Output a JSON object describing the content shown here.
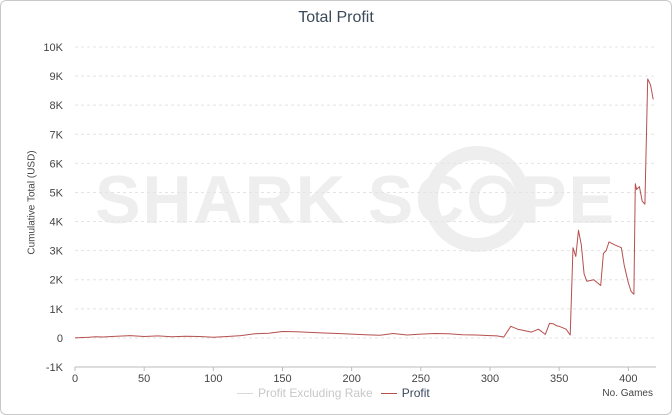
{
  "chart_data": {
    "type": "line",
    "title": "Total Profit",
    "xlabel": "No. Games",
    "ylabel": "Cumulative Total (USD)",
    "xlim": [
      0,
      420
    ],
    "ylim": [
      -1000,
      10000
    ],
    "x_ticks": [
      0,
      50,
      100,
      150,
      200,
      250,
      300,
      350,
      400
    ],
    "y_ticks": [
      -1000,
      0,
      1000,
      2000,
      3000,
      4000,
      5000,
      6000,
      7000,
      8000,
      9000,
      10000
    ],
    "y_tick_labels": [
      "-1K",
      "0",
      "1K",
      "2K",
      "3K",
      "4K",
      "5K",
      "6K",
      "7K",
      "8K",
      "9K",
      "10K"
    ],
    "x_tick_labels": [
      "0",
      "50",
      "100",
      "150",
      "200",
      "250",
      "300",
      "350",
      "400"
    ],
    "grid": true,
    "watermark": "SHARK SCOPE",
    "legend": {
      "placement": "bottom",
      "entries": [
        "Profit Excluding Rake",
        "Profit"
      ]
    },
    "series": [
      {
        "name": "Profit Excluding Rake",
        "color": "#d9d9d9",
        "visible": false,
        "x": [],
        "y": []
      },
      {
        "name": "Profit",
        "color": "#b5504e",
        "visible": true,
        "x": [
          0,
          10,
          15,
          20,
          30,
          40,
          50,
          60,
          70,
          80,
          90,
          100,
          110,
          120,
          130,
          140,
          150,
          160,
          170,
          180,
          190,
          200,
          210,
          220,
          230,
          240,
          250,
          260,
          270,
          280,
          290,
          300,
          305,
          310,
          315,
          320,
          325,
          330,
          335,
          340,
          343,
          346,
          348,
          350,
          355,
          358,
          360,
          362,
          364,
          366,
          368,
          370,
          375,
          380,
          382,
          384,
          386,
          390,
          395,
          397,
          399,
          400,
          402,
          404,
          405,
          406,
          408,
          410,
          412,
          414,
          416,
          418
        ],
        "y": [
          0,
          20,
          40,
          30,
          60,
          80,
          50,
          70,
          40,
          60,
          50,
          20,
          50,
          80,
          140,
          160,
          220,
          210,
          190,
          170,
          150,
          130,
          110,
          90,
          150,
          100,
          130,
          150,
          140,
          110,
          100,
          80,
          70,
          30,
          400,
          300,
          250,
          200,
          300,
          120,
          500,
          480,
          420,
          400,
          300,
          100,
          3100,
          2800,
          3700,
          3200,
          2200,
          1950,
          2000,
          1800,
          2900,
          3000,
          3300,
          3200,
          3100,
          2500,
          2100,
          1900,
          1600,
          1500,
          5300,
          5100,
          5200,
          4700,
          4600,
          8900,
          8700,
          8200
        ]
      }
    ]
  }
}
